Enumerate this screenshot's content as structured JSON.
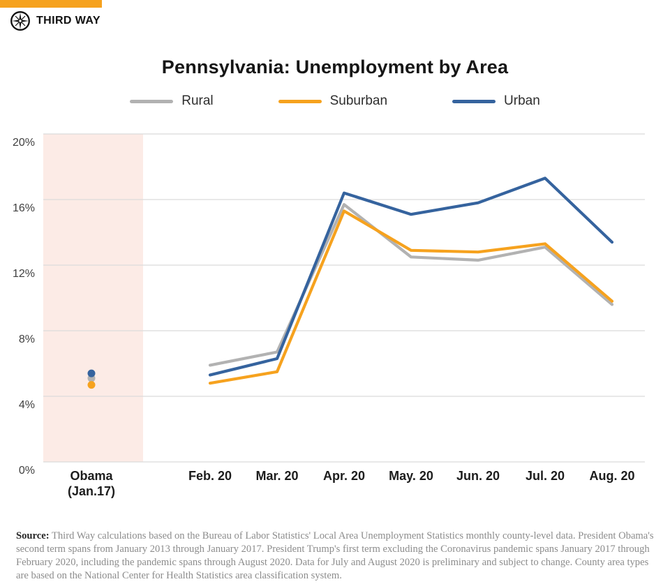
{
  "brand": {
    "logo_text": "THIRD WAY",
    "top_bar_color": "#F6A21E"
  },
  "chart_data": {
    "type": "line",
    "title": "Pennsylvania: Unemployment by Area",
    "categories": [
      "Obama\n(Jan.17)",
      "Feb. 20",
      "Mar. 20",
      "Apr. 20",
      "May. 20",
      "Jun. 20",
      "Jul. 20",
      "Aug. 20"
    ],
    "series": [
      {
        "name": "Rural",
        "color": "#B2B2B2",
        "values": [
          5.1,
          5.9,
          6.7,
          15.7,
          12.5,
          12.3,
          13.1,
          9.6
        ]
      },
      {
        "name": "Suburban",
        "color": "#F6A21E",
        "values": [
          4.7,
          4.8,
          5.5,
          15.3,
          12.9,
          12.8,
          13.3,
          9.8
        ]
      },
      {
        "name": "Urban",
        "color": "#35639E",
        "values": [
          5.4,
          5.3,
          6.3,
          16.4,
          15.1,
          15.8,
          17.3,
          13.4
        ]
      }
    ],
    "xlabel": "",
    "ylabel": "",
    "ylim": [
      0,
      20
    ],
    "ytick_values": [
      0,
      4,
      8,
      12,
      16,
      20
    ],
    "ytick_labels": [
      "0%",
      "4%",
      "8%",
      "12%",
      "16%",
      "20%"
    ],
    "grid": "horizontal",
    "gridline_color": "#DBDBDB",
    "legend_position": "top",
    "first_category_style": "dots-only",
    "highlight_band": {
      "category": "Obama (Jan.17)",
      "color": "#FCEBE6"
    }
  },
  "source": {
    "label": "Source:",
    "text": "Third Way calculations based on the Bureau of Labor Statistics' Local Area Unemployment Statistics monthly county-level data. President Obama's second term spans from January 2013 through January 2017. President Trump's first term excluding the Coronavirus pandemic spans January 2017 through February 2020, including the pandemic spans through August 2020. Data for July and August 2020 is preliminary and subject to change. County area types are based on the National Center for Health Statistics area classification system."
  }
}
